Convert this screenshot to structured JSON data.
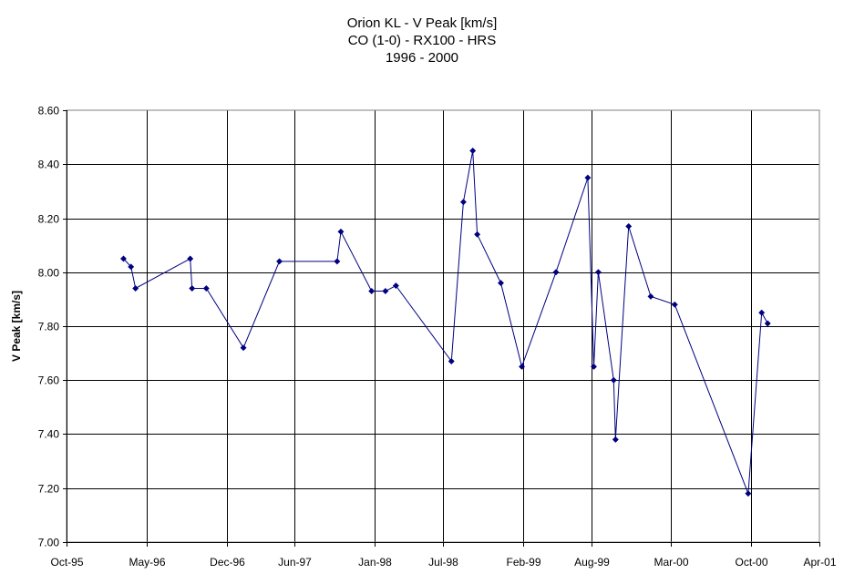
{
  "chart_data": {
    "type": "line",
    "title": "Orion KL - V Peak [km/s]",
    "subtitle_lines": [
      "CO (1-0) - RX100 - HRS",
      "1996 - 2000"
    ],
    "xlabel": "",
    "ylabel": "V Peak [km/s]",
    "x_tick_labels": [
      "Oct-95",
      "May-96",
      "Dec-96",
      "Jun-97",
      "Jan-98",
      "Jul-98",
      "Feb-99",
      "Aug-99",
      "Mar-00",
      "Oct-00",
      "Apr-01"
    ],
    "x_ticks": [
      "1995-10-01",
      "1996-05-01",
      "1996-12-01",
      "1997-06-01",
      "1998-01-01",
      "1998-07-01",
      "1999-02-01",
      "1999-08-01",
      "2000-03-01",
      "2000-10-01",
      "2001-04-01"
    ],
    "xlim": [
      "1995-10-01",
      "2001-04-01"
    ],
    "ylim": [
      7.0,
      8.6
    ],
    "y_tick_labels": [
      "7.00",
      "7.20",
      "7.40",
      "7.60",
      "7.80",
      "8.00",
      "8.20",
      "8.40",
      "8.60"
    ],
    "y_ticks": [
      7.0,
      7.2,
      7.4,
      7.6,
      7.8,
      8.0,
      8.2,
      8.4,
      8.6
    ],
    "grid": true,
    "legend": "none",
    "series": [
      {
        "color": "#000080",
        "marker": "diamond",
        "points": [
          {
            "x": "1996-03-01",
            "y": 8.05
          },
          {
            "x": "1996-03-21",
            "y": 8.02
          },
          {
            "x": "1996-04-02",
            "y": 7.94
          },
          {
            "x": "1996-08-26",
            "y": 8.05
          },
          {
            "x": "1996-08-31",
            "y": 7.94
          },
          {
            "x": "1996-10-08",
            "y": 7.94
          },
          {
            "x": "1997-01-15",
            "y": 7.72
          },
          {
            "x": "1997-04-21",
            "y": 8.04
          },
          {
            "x": "1997-09-22",
            "y": 8.04
          },
          {
            "x": "1997-10-02",
            "y": 8.15
          },
          {
            "x": "1997-12-23",
            "y": 7.93
          },
          {
            "x": "1998-01-29",
            "y": 7.93
          },
          {
            "x": "1998-02-26",
            "y": 7.95
          },
          {
            "x": "1998-07-24",
            "y": 7.67
          },
          {
            "x": "1998-08-25",
            "y": 8.26
          },
          {
            "x": "1998-09-19",
            "y": 8.45
          },
          {
            "x": "1998-10-01",
            "y": 8.14
          },
          {
            "x": "1998-12-03",
            "y": 7.96
          },
          {
            "x": "1999-01-28",
            "y": 7.65
          },
          {
            "x": "1999-04-29",
            "y": 8.0
          },
          {
            "x": "1999-07-23",
            "y": 8.35
          },
          {
            "x": "1999-08-08",
            "y": 7.65
          },
          {
            "x": "1999-08-20",
            "y": 8.0
          },
          {
            "x": "1999-09-30",
            "y": 7.6
          },
          {
            "x": "1999-10-05",
            "y": 7.38
          },
          {
            "x": "1999-11-09",
            "y": 8.17
          },
          {
            "x": "2000-01-07",
            "y": 7.91
          },
          {
            "x": "2000-03-11",
            "y": 7.88
          },
          {
            "x": "2000-09-23",
            "y": 7.18
          },
          {
            "x": "2000-10-29",
            "y": 7.85
          },
          {
            "x": "2000-11-14",
            "y": 7.81
          }
        ]
      }
    ]
  }
}
